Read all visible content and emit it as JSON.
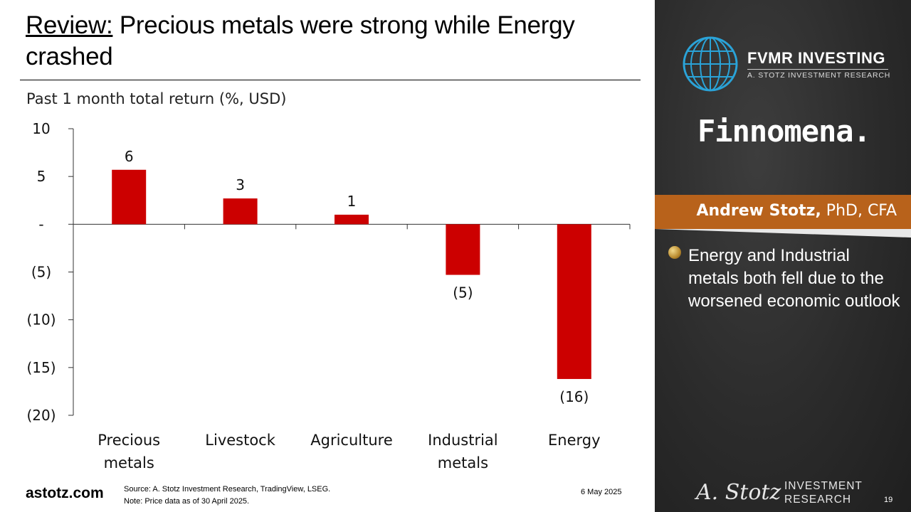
{
  "title": {
    "underlined": "Review:",
    "rest": " Precious metals were strong while Energy crashed"
  },
  "chart_data": {
    "type": "bar",
    "title": "Past 1 month total return (%, USD)",
    "categories": [
      [
        "Precious",
        "metals"
      ],
      [
        "Livestock"
      ],
      [
        "Agriculture"
      ],
      [
        "Industrial",
        "metals"
      ],
      [
        "Energy"
      ]
    ],
    "values": [
      5.7,
      2.7,
      1.0,
      -5.3,
      -16.2
    ],
    "data_labels": [
      "6",
      "3",
      "1",
      "(5)",
      "(16)"
    ],
    "ylim": [
      -20,
      10
    ],
    "yticks": [
      10,
      5,
      0,
      -5,
      -10,
      -15,
      -20
    ],
    "ytick_labels": [
      "10",
      "5",
      "-",
      "(5)",
      "(10)",
      "(15)",
      "(20)"
    ],
    "bar_color": "#cc0000",
    "grid": false,
    "legend": "none"
  },
  "footer": {
    "site": "astotz.com",
    "source": "Source: A. Stotz Investment Research, TradingView, LSEG.",
    "note": "Note: Price data as of 30 April 2025.",
    "date": "6 May 2025"
  },
  "sidebar": {
    "logo_name": "FVMR INVESTING",
    "logo_tagline": "A. STOTZ INVESTMENT RESEARCH",
    "partner": "Finnomena.",
    "author_name": "Andrew Stotz,",
    "author_creds": " PhD, CFA",
    "bullet": "Energy and Industrial metals both fell due to the worsened economic outlook",
    "signature": "A. Stotz",
    "ir_line1": "INVESTMENT",
    "ir_line2": "RESEARCH",
    "page_number": "19",
    "accent": "#b8621b"
  }
}
